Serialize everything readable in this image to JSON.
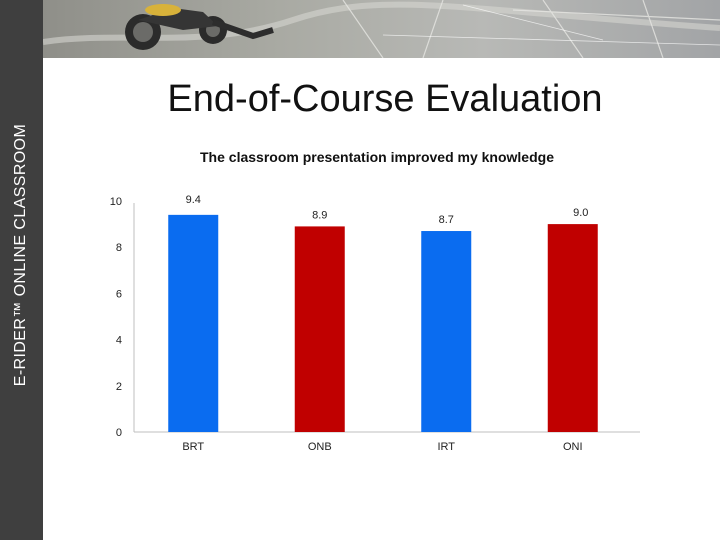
{
  "sidebar": {
    "text": "E-RIDER™ ONLINE CLASSROOM"
  },
  "slide": {
    "title": "End-of-Course Evaluation"
  },
  "colors": {
    "blue": "#0a6cf0",
    "red": "#c00000",
    "sidebar": "#3f3f3f"
  },
  "banner": {
    "icons": [
      "motorcycle-image",
      "road-map-image"
    ]
  },
  "chart_data": {
    "type": "bar",
    "title": "The classroom presentation improved my knowledge",
    "xlabel": "",
    "ylabel": "",
    "categories": [
      "BRT",
      "ONB",
      "IRT",
      "ONI"
    ],
    "values": [
      9.4,
      8.9,
      8.7,
      9.0
    ],
    "data_labels": [
      "9.4",
      "8.9",
      "8.7",
      "9.0"
    ],
    "bar_colors": [
      "#0a6cf0",
      "#c00000",
      "#0a6cf0",
      "#c00000"
    ],
    "ylim": [
      0,
      10
    ],
    "yticks": [
      "0",
      "2",
      "4",
      "6",
      "8",
      "10"
    ],
    "grid": false,
    "legend": "none"
  }
}
